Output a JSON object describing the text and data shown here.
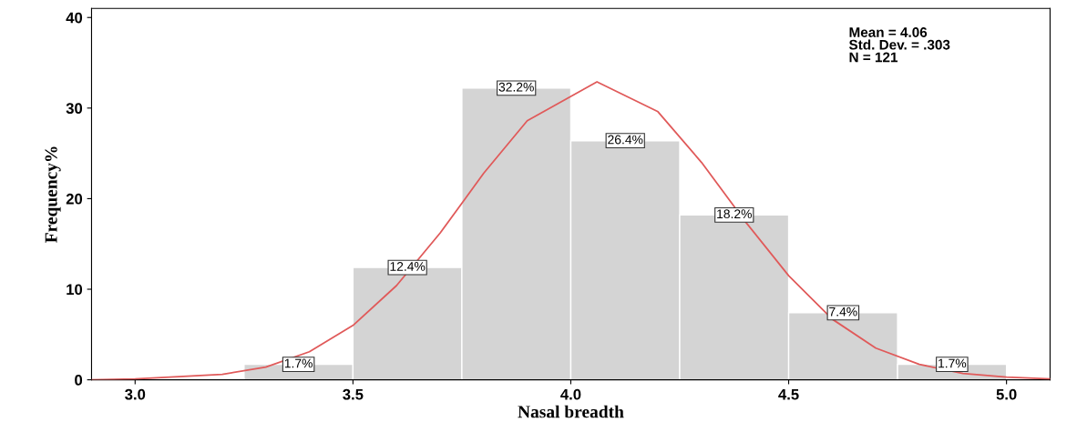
{
  "chart_data": {
    "type": "histogram",
    "xlabel": "Nasal breadth",
    "ylabel": "Frequency%",
    "bins": [
      3.25,
      3.5,
      3.75,
      4.0,
      4.25,
      4.5,
      4.75,
      5.0
    ],
    "values": [
      1.7,
      12.4,
      32.2,
      26.4,
      18.2,
      7.4,
      1.7
    ],
    "value_labels": [
      "1.7%",
      "12.4%",
      "32.2%",
      "26.4%",
      "18.2%",
      "7.4%",
      "1.7%"
    ],
    "color": "#d4d4d4",
    "series": [
      {
        "type": "line",
        "color": "#e05a5a",
        "x": [
          2.9,
          3.0,
          3.2,
          3.3,
          3.4,
          3.5,
          3.6,
          3.7,
          3.8,
          3.9,
          4.06,
          4.2,
          4.3,
          4.4,
          4.5,
          4.6,
          4.7,
          4.8,
          4.9,
          5.0,
          5.1
        ],
        "values": [
          0,
          0.1,
          0.6,
          1.4,
          3.1,
          6.0,
          10.4,
          16.2,
          22.8,
          28.6,
          32.9,
          29.6,
          24.0,
          17.5,
          11.5,
          6.7,
          3.5,
          1.7,
          0.7,
          0.3,
          0.1
        ]
      }
    ],
    "annotations": [
      "Mean = 4.06\nStd. Dev. = .303\nN = 121"
    ],
    "xlim": [
      2.9,
      5.1
    ],
    "xticks": [
      {
        "value": 3.0,
        "label": "3.0"
      },
      {
        "value": 3.5,
        "label": "3.5"
      },
      {
        "value": 4.0,
        "label": "4.0"
      },
      {
        "value": 4.5,
        "label": "4.5"
      },
      {
        "value": 5.0,
        "label": "5.0"
      }
    ],
    "ylim": [
      0,
      41
    ],
    "yticks": [
      0,
      10,
      20,
      30,
      40
    ],
    "grid": false,
    "legend": false
  }
}
